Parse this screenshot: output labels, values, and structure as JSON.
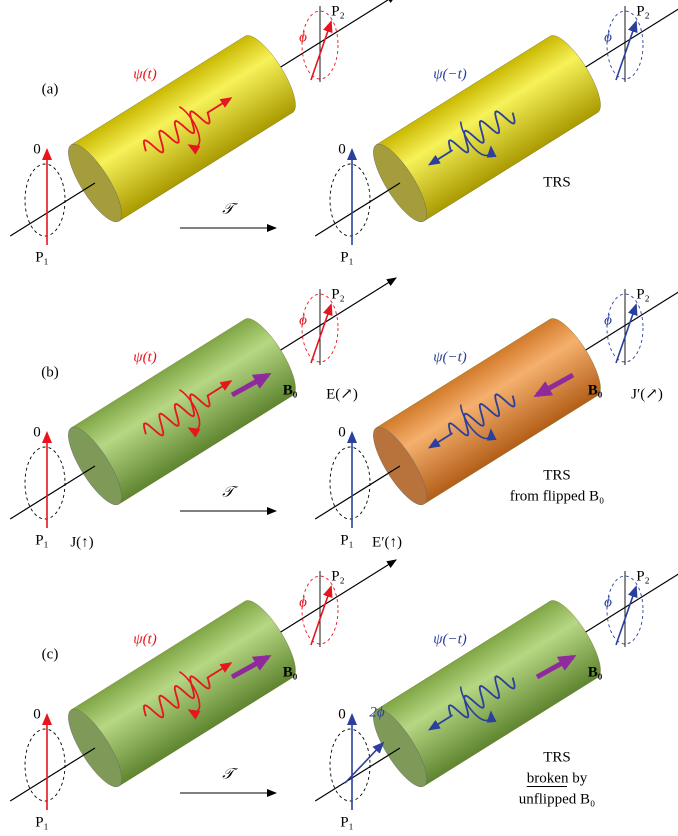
{
  "panels": [
    {
      "label": "(a)",
      "operator": "𝒯",
      "left": {
        "state": "ψ(t)",
        "zero": "0",
        "p1": "P₁",
        "p2": "P₂",
        "angle": "ϕ"
      },
      "right": {
        "state": "ψ(−t)",
        "zero": "0",
        "p1": "P₁",
        "p2": "P₂",
        "angle": "ϕ",
        "note": [
          "TRS"
        ]
      }
    },
    {
      "label": "(b)",
      "operator": "𝒯",
      "left": {
        "state": "ψ(t)",
        "zero": "0",
        "p1": "P₁",
        "p2": "P₂",
        "angle": "ϕ",
        "field": "B₀",
        "top_field": "E(↗)",
        "bottom_field": "J(↑)"
      },
      "right": {
        "state": "ψ(−t)",
        "zero": "0",
        "p1": "P₁",
        "p2": "P₂",
        "angle": "ϕ",
        "field": "B₀",
        "top_field": "J′(↗)",
        "bottom_field": "E′(↑)",
        "note": [
          "TRS",
          "from flipped B₀"
        ]
      }
    },
    {
      "label": "(c)",
      "operator": "𝒯",
      "left": {
        "state": "ψ(t)",
        "zero": "0",
        "p1": "P₁",
        "p2": "P₂",
        "angle": "ϕ",
        "field": "B₀"
      },
      "right": {
        "state": "ψ(−t)",
        "zero": "0",
        "p1": "P₁",
        "p2": "P₂",
        "angle": "ϕ",
        "field": "B₀",
        "extra_angle": "2ϕ",
        "note": [
          "TRS",
          "broken by",
          "unflipped B₀"
        ]
      }
    }
  ]
}
